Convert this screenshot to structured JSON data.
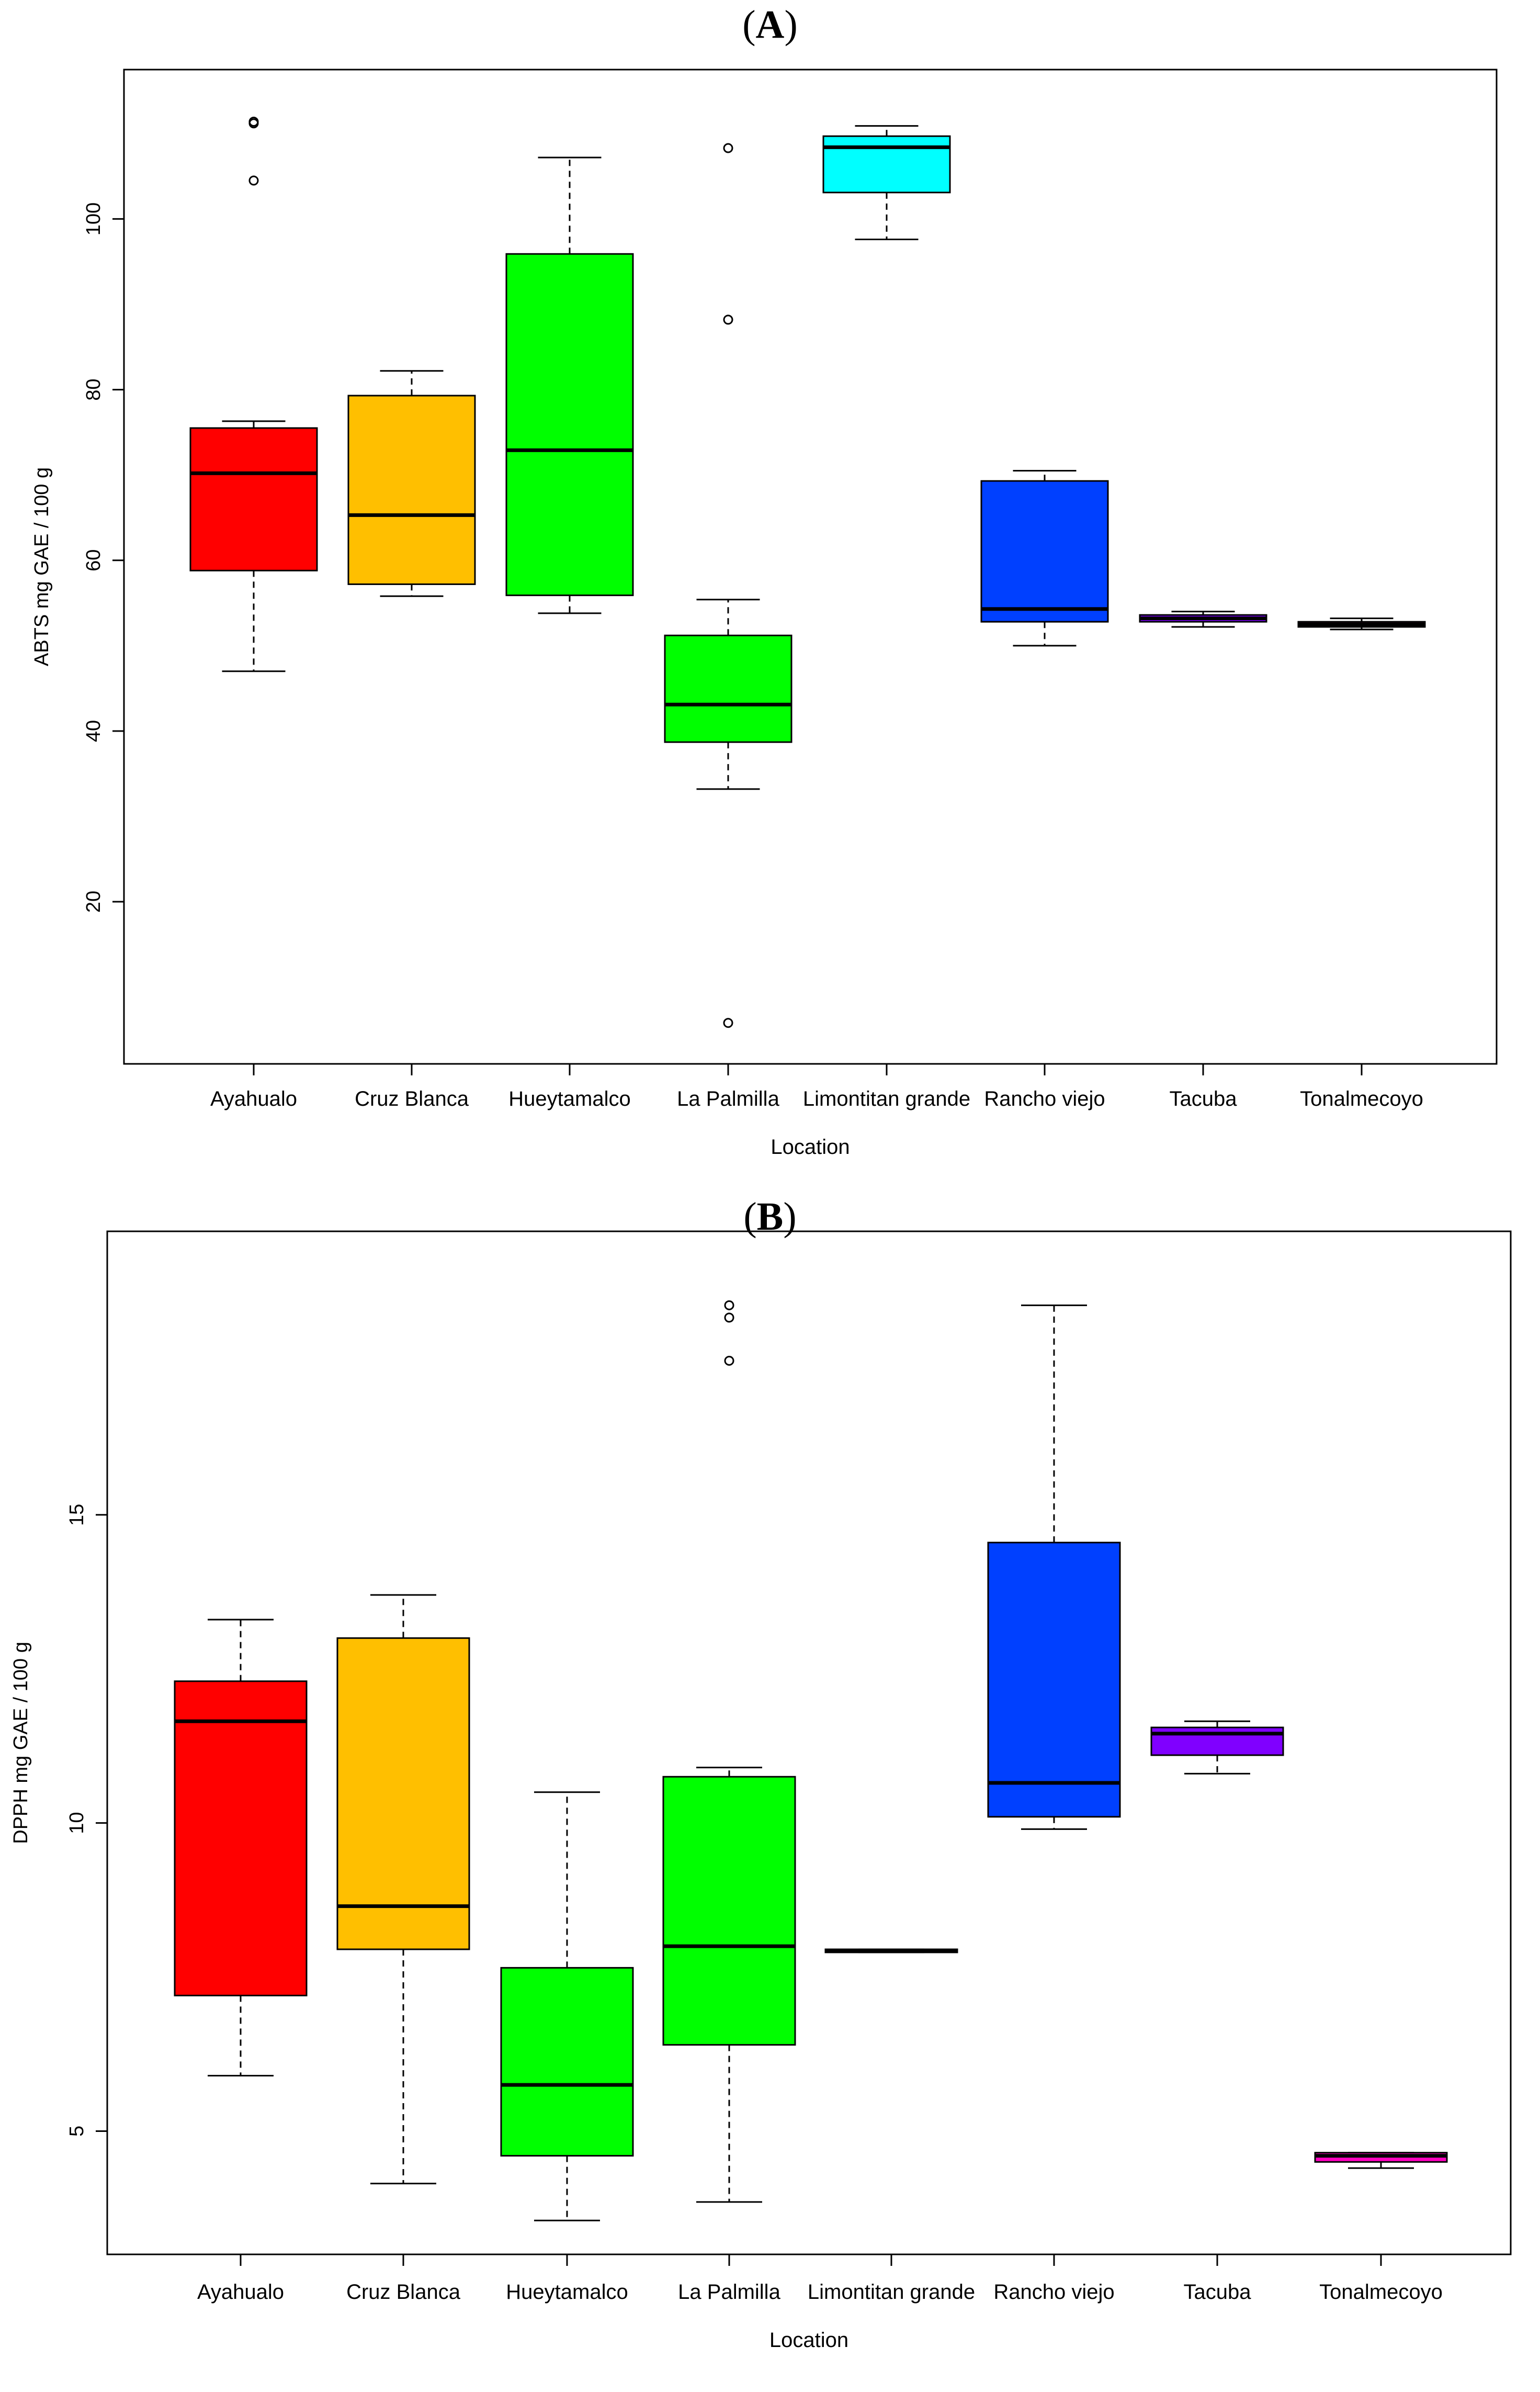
{
  "figure": {
    "panel_a_title": "A",
    "panel_b_title": "B"
  },
  "colors": {
    "Ayahualo": "#ff0000",
    "Cruz Blanca": "#ffbf00",
    "Hueytamalco": "#00ff00",
    "La Palmilla": "#00ff00",
    "Limontitan grande": "#00ffff",
    "Rancho viejo": "#0040ff",
    "Tacuba": "#8000ff",
    "Tonalmecoyo": "#ff00bf"
  },
  "chart_data": [
    {
      "type": "boxplot",
      "panel": "A",
      "title": "A",
      "xlabel": "Location",
      "ylabel": "ABTS mg GAE / 100 g",
      "ylim": [
        1,
        117.5
      ],
      "yticks": [
        20,
        40,
        60,
        80,
        100
      ],
      "categories": [
        "Ayahualo",
        "Cruz Blanca",
        "Hueytamalco",
        "La Palmilla",
        "Limontitan grande",
        "Rancho viejo",
        "Tacuba",
        "Tonalmecoyo"
      ],
      "boxes": [
        {
          "category": "Ayahualo",
          "whisker_low": 47,
          "q1": 58.8,
          "median": 70.2,
          "q3": 75.5,
          "whisker_high": 76.3,
          "outliers": [
            104.5,
            111.2,
            111.4
          ]
        },
        {
          "category": "Cruz Blanca",
          "whisker_low": 55.8,
          "q1": 57.2,
          "median": 65.3,
          "q3": 79.3,
          "whisker_high": 82.2,
          "outliers": []
        },
        {
          "category": "Hueytamalco",
          "whisker_low": 53.8,
          "q1": 55.9,
          "median": 72.9,
          "q3": 95.9,
          "whisker_high": 107.2,
          "outliers": []
        },
        {
          "category": "La Palmilla",
          "whisker_low": 33.2,
          "q1": 38.7,
          "median": 43.1,
          "q3": 51.2,
          "whisker_high": 55.4,
          "outliers": [
            108.3,
            88.2,
            5.8
          ]
        },
        {
          "category": "Limontitan grande",
          "whisker_low": 97.6,
          "q1": 103.1,
          "median": 108.4,
          "q3": 109.7,
          "whisker_high": 110.9,
          "outliers": []
        },
        {
          "category": "Rancho viejo",
          "whisker_low": 50.0,
          "q1": 52.8,
          "median": 54.3,
          "q3": 69.3,
          "whisker_high": 70.5,
          "outliers": []
        },
        {
          "category": "Tacuba",
          "whisker_low": 52.2,
          "q1": 52.8,
          "median": 53.2,
          "q3": 53.6,
          "whisker_high": 54.0,
          "outliers": []
        },
        {
          "category": "Tonalmecoyo",
          "whisker_low": 51.9,
          "q1": 52.2,
          "median": 52.5,
          "q3": 52.8,
          "whisker_high": 53.2,
          "outliers": []
        }
      ]
    },
    {
      "type": "boxplot",
      "panel": "B",
      "title": "B",
      "xlabel": "Location",
      "ylabel": "DPPH mg GAE / 100 g",
      "ylim": [
        3.0,
        19.6
      ],
      "yticks": [
        5,
        10,
        15
      ],
      "categories": [
        "Ayahualo",
        "Cruz Blanca",
        "Hueytamalco",
        "La Palmilla",
        "Limontitan grande",
        "Rancho viejo",
        "Tacuba",
        "Tonalmecoyo"
      ],
      "boxes": [
        {
          "category": "Ayahualo",
          "whisker_low": 5.9,
          "q1": 7.2,
          "median": 11.65,
          "q3": 12.3,
          "whisker_high": 13.3,
          "outliers": []
        },
        {
          "category": "Cruz Blanca",
          "whisker_low": 4.15,
          "q1": 7.95,
          "median": 8.65,
          "q3": 13.0,
          "whisker_high": 13.7,
          "outliers": []
        },
        {
          "category": "Hueytamalco",
          "whisker_low": 3.55,
          "q1": 4.6,
          "median": 5.75,
          "q3": 7.65,
          "whisker_high": 10.5,
          "outliers": []
        },
        {
          "category": "La Palmilla",
          "whisker_low": 3.85,
          "q1": 6.4,
          "median": 8.0,
          "q3": 10.75,
          "whisker_high": 10.9,
          "outliers": [
            18.4,
            18.2,
            17.5
          ]
        },
        {
          "category": "Limontitan grande",
          "whisker_low": 7.9,
          "q1": 7.9,
          "median": 7.92,
          "q3": 7.95,
          "whisker_high": 7.95,
          "outliers": []
        },
        {
          "category": "Rancho viejo",
          "whisker_low": 9.9,
          "q1": 10.1,
          "median": 10.65,
          "q3": 14.55,
          "whisker_high": 18.4,
          "outliers": []
        },
        {
          "category": "Tacuba",
          "whisker_low": 10.8,
          "q1": 11.1,
          "median": 11.45,
          "q3": 11.55,
          "whisker_high": 11.65,
          "outliers": []
        },
        {
          "category": "Tonalmecoyo",
          "whisker_low": 4.4,
          "q1": 4.5,
          "median": 4.6,
          "q3": 4.65,
          "whisker_high": 4.65,
          "outliers": []
        }
      ]
    }
  ]
}
